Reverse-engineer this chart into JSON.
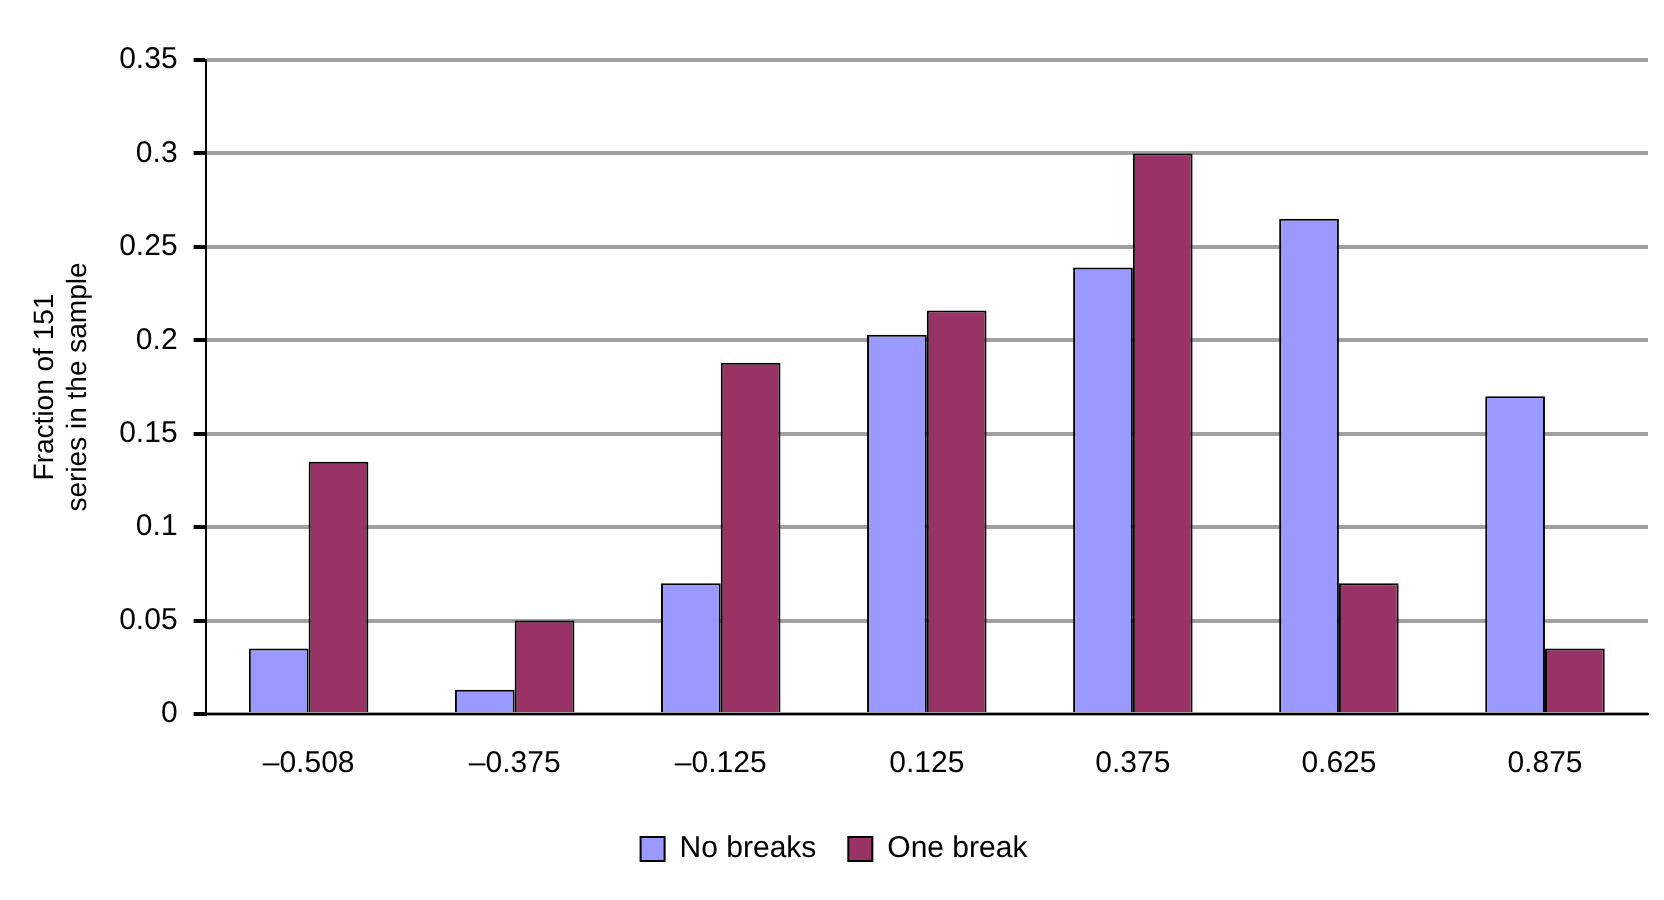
{
  "chart_data": {
    "type": "bar",
    "ylabel": "Fraction of 151\nseries in the sample",
    "categories": [
      "–0.508",
      "–0.375",
      "–0.125",
      "0.125",
      "0.375",
      "0.625",
      "0.875"
    ],
    "series": [
      {
        "name": "No breaks",
        "color": "#9999ff",
        "values": [
          0.035,
          0.013,
          0.07,
          0.203,
          0.239,
          0.265,
          0.17
        ]
      },
      {
        "name": "One break",
        "color": "#993366",
        "values": [
          0.135,
          0.05,
          0.188,
          0.216,
          0.3,
          0.07,
          0.035
        ]
      }
    ],
    "ylim": [
      0,
      0.35
    ],
    "yticks": [
      0,
      0.05,
      0.1,
      0.15,
      0.2,
      0.25,
      0.3,
      0.35
    ],
    "grid": "y",
    "legend": "bottom"
  }
}
